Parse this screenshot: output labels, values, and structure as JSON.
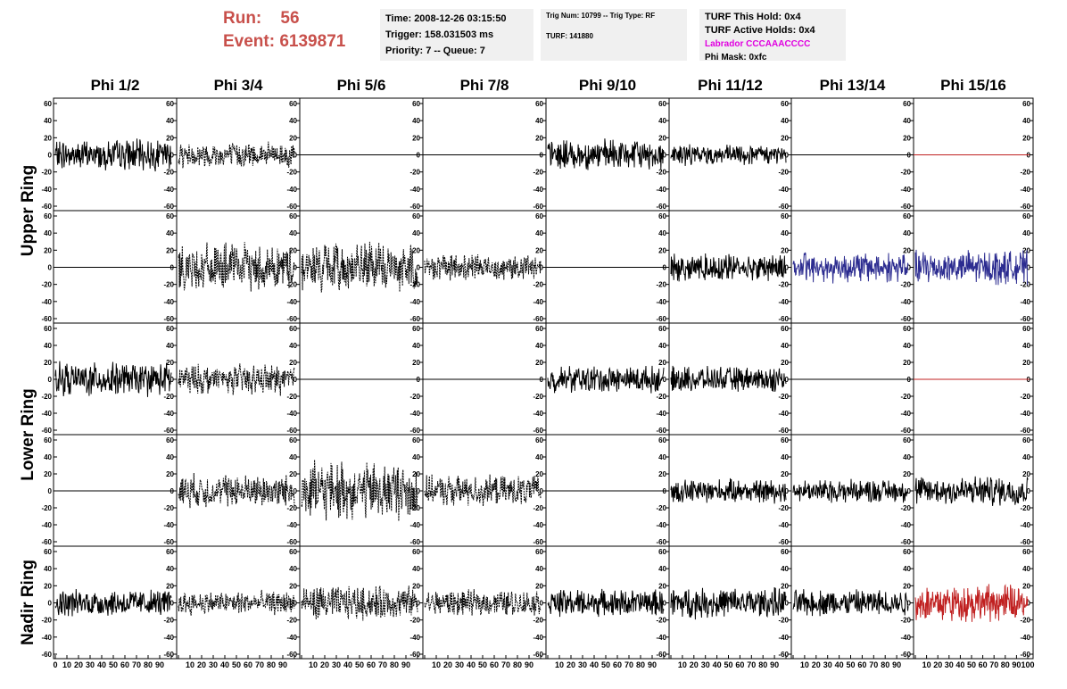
{
  "header": {
    "run_label": "Run:",
    "run_value": "56",
    "event_label": "Event:",
    "event_value": "6139871"
  },
  "info_time": {
    "time": "Time: 2008-12-26 03:15:50",
    "trigger": "Trigger: 158.031503 ms",
    "priority": "Priority: 7 -- Queue: 7"
  },
  "info_trig": {
    "trig": "Trig Num: 10799 -- Trig Type: RF",
    "turf": "TURF: 141880"
  },
  "info_turf": {
    "this_hold": "TURF This Hold: 0x4",
    "active_holds": "TURF Active Holds: 0x4",
    "labrador": "Labrador CCCAAACCCC",
    "phi_mask": "Phi Mask: 0xfc"
  },
  "phi_headers": [
    "Phi 1/2",
    "Phi 3/4",
    "Phi 5/6",
    "Phi 7/8",
    "Phi 9/10",
    "Phi 11/12",
    "Phi 13/14",
    "Phi 15/16"
  ],
  "ring_labels": [
    "Upper Ring",
    "Lower Ring",
    "Nadir Ring"
  ],
  "colors": {
    "run_text": "#c8504b",
    "labrador_text": "#e000e0",
    "trace_black": "#000000",
    "trace_blue": "#2c2c90",
    "trace_red": "#c02020",
    "info_bg": "#f0f0f0"
  },
  "chart_data": {
    "type": "line",
    "rows": 5,
    "cols": 8,
    "ylim": [
      -60,
      60
    ],
    "yticks": [
      -60,
      -40,
      -20,
      0,
      20,
      40,
      60
    ],
    "xlim": [
      0,
      100
    ],
    "xticks": [
      0,
      10,
      20,
      30,
      40,
      50,
      60,
      70,
      80,
      90,
      100
    ],
    "grid": false,
    "panels": [
      [
        {
          "amp": 18,
          "style": "solid",
          "color": "black"
        },
        {
          "amp": 15,
          "style": "dashed",
          "color": "black"
        },
        {
          "amp": 0,
          "style": "solid",
          "color": "black"
        },
        {
          "amp": 0,
          "style": "solid",
          "color": "black"
        },
        {
          "amp": 18,
          "style": "solid",
          "color": "black"
        },
        {
          "amp": 12,
          "style": "solid",
          "color": "black"
        },
        {
          "amp": 0,
          "style": "solid",
          "color": "black"
        },
        {
          "amp": 0,
          "style": "solid",
          "color": "red"
        }
      ],
      [
        {
          "amp": 0,
          "style": "solid",
          "color": "black"
        },
        {
          "amp": 28,
          "style": "dashed",
          "color": "black"
        },
        {
          "amp": 30,
          "style": "dashed",
          "color": "black"
        },
        {
          "amp": 15,
          "style": "dashed",
          "color": "black"
        },
        {
          "amp": 0,
          "style": "solid",
          "color": "black"
        },
        {
          "amp": 16,
          "style": "solid",
          "color": "black"
        },
        {
          "amp": 18,
          "style": "solid",
          "color": "blue"
        },
        {
          "amp": 20,
          "style": "solid",
          "color": "blue"
        }
      ],
      [
        {
          "amp": 20,
          "style": "solid",
          "color": "black"
        },
        {
          "amp": 18,
          "style": "dashed",
          "color": "black"
        },
        {
          "amp": 0,
          "style": "solid",
          "color": "black"
        },
        {
          "amp": 0,
          "style": "solid",
          "color": "black"
        },
        {
          "amp": 16,
          "style": "solid",
          "color": "black"
        },
        {
          "amp": 15,
          "style": "solid",
          "color": "black"
        },
        {
          "amp": 0,
          "style": "solid",
          "color": "black"
        },
        {
          "amp": 0,
          "style": "solid",
          "color": "red"
        }
      ],
      [
        {
          "amp": 0,
          "style": "solid",
          "color": "black"
        },
        {
          "amp": 20,
          "style": "dashed",
          "color": "black"
        },
        {
          "amp": 35,
          "style": "dashed",
          "color": "black"
        },
        {
          "amp": 18,
          "style": "dashed",
          "color": "black"
        },
        {
          "amp": 0,
          "style": "solid",
          "color": "black"
        },
        {
          "amp": 14,
          "style": "solid",
          "color": "black"
        },
        {
          "amp": 14,
          "style": "solid",
          "color": "black"
        },
        {
          "amp": 18,
          "style": "solid",
          "color": "black"
        }
      ],
      [
        {
          "amp": 16,
          "style": "solid",
          "color": "black"
        },
        {
          "amp": 14,
          "style": "dashed",
          "color": "black"
        },
        {
          "amp": 20,
          "style": "dashed",
          "color": "black"
        },
        {
          "amp": 15,
          "style": "dashed",
          "color": "black"
        },
        {
          "amp": 16,
          "style": "solid",
          "color": "black"
        },
        {
          "amp": 18,
          "style": "solid",
          "color": "black"
        },
        {
          "amp": 16,
          "style": "solid",
          "color": "black"
        },
        {
          "amp": 22,
          "style": "solid",
          "color": "red"
        }
      ]
    ]
  }
}
